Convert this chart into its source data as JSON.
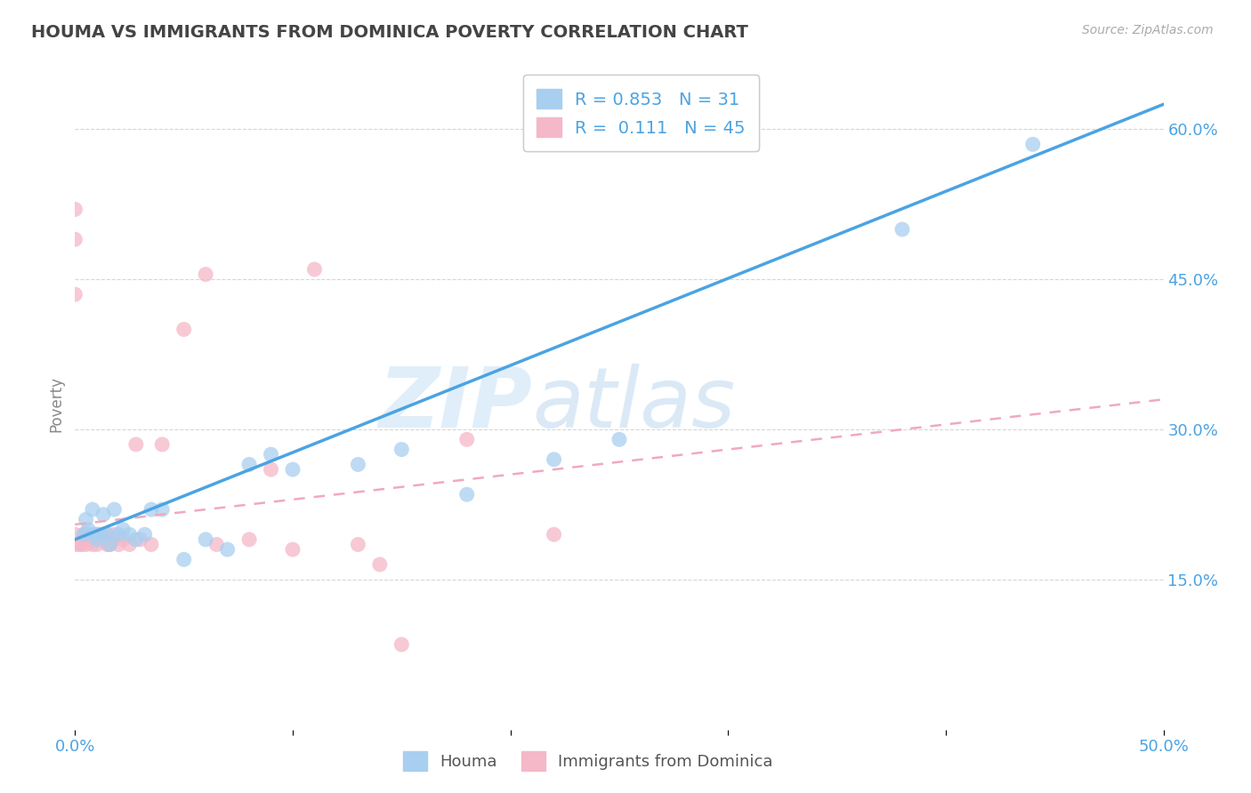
{
  "title": "HOUMA VS IMMIGRANTS FROM DOMINICA POVERTY CORRELATION CHART",
  "source": "Source: ZipAtlas.com",
  "ylabel": "Poverty",
  "watermark": "ZIPatlas",
  "xlim": [
    0.0,
    0.5
  ],
  "ylim": [
    0.0,
    0.65
  ],
  "ytick_positions": [
    0.15,
    0.3,
    0.45,
    0.6
  ],
  "ytick_labels": [
    "15.0%",
    "30.0%",
    "45.0%",
    "60.0%"
  ],
  "xtick_positions": [
    0.0,
    0.1,
    0.2,
    0.3,
    0.4,
    0.5
  ],
  "xtick_labels": [
    "0.0%",
    "",
    "",
    "",
    "",
    "50.0%"
  ],
  "blue_R": 0.853,
  "blue_N": 31,
  "pink_R": 0.111,
  "pink_N": 45,
  "blue_color": "#A8CFF0",
  "pink_color": "#F5B8C8",
  "blue_line_color": "#4BA3E3",
  "pink_line_color": "#F0AABB",
  "legend_blue_label": "Houma",
  "legend_pink_label": "Immigrants from Dominica",
  "blue_scatter_x": [
    0.004,
    0.005,
    0.006,
    0.008,
    0.009,
    0.01,
    0.012,
    0.013,
    0.015,
    0.016,
    0.018,
    0.02,
    0.022,
    0.025,
    0.028,
    0.032,
    0.035,
    0.04,
    0.05,
    0.06,
    0.07,
    0.08,
    0.09,
    0.1,
    0.13,
    0.15,
    0.18,
    0.22,
    0.25,
    0.38,
    0.44
  ],
  "blue_scatter_y": [
    0.195,
    0.21,
    0.2,
    0.22,
    0.195,
    0.19,
    0.195,
    0.215,
    0.195,
    0.185,
    0.22,
    0.195,
    0.2,
    0.195,
    0.19,
    0.195,
    0.22,
    0.22,
    0.17,
    0.19,
    0.18,
    0.265,
    0.275,
    0.26,
    0.265,
    0.28,
    0.235,
    0.27,
    0.29,
    0.5,
    0.585
  ],
  "pink_scatter_x": [
    0.0,
    0.0,
    0.002,
    0.003,
    0.004,
    0.005,
    0.005,
    0.006,
    0.007,
    0.008,
    0.008,
    0.009,
    0.01,
    0.01,
    0.011,
    0.012,
    0.013,
    0.014,
    0.015,
    0.015,
    0.016,
    0.017,
    0.018,
    0.02,
    0.022,
    0.025,
    0.028,
    0.03,
    0.035,
    0.04,
    0.05,
    0.06,
    0.065,
    0.08,
    0.09,
    0.1,
    0.11,
    0.13,
    0.14,
    0.15,
    0.18,
    0.22,
    0.0,
    0.0,
    0.0
  ],
  "pink_scatter_y": [
    0.195,
    0.185,
    0.185,
    0.185,
    0.195,
    0.185,
    0.195,
    0.195,
    0.19,
    0.195,
    0.185,
    0.195,
    0.185,
    0.195,
    0.195,
    0.19,
    0.19,
    0.195,
    0.185,
    0.185,
    0.185,
    0.19,
    0.195,
    0.185,
    0.19,
    0.185,
    0.285,
    0.19,
    0.185,
    0.285,
    0.4,
    0.455,
    0.185,
    0.19,
    0.26,
    0.18,
    0.46,
    0.185,
    0.165,
    0.085,
    0.29,
    0.195,
    0.49,
    0.52,
    0.435
  ],
  "blue_line_x0": 0.0,
  "blue_line_y0": 0.19,
  "blue_line_x1": 0.5,
  "blue_line_y1": 0.625,
  "pink_line_x0": 0.0,
  "pink_line_y0": 0.205,
  "pink_line_x1": 0.5,
  "pink_line_y1": 0.33,
  "background_color": "#ffffff",
  "grid_color": "#cccccc",
  "tick_color": "#4BA3E3",
  "title_color": "#444444"
}
